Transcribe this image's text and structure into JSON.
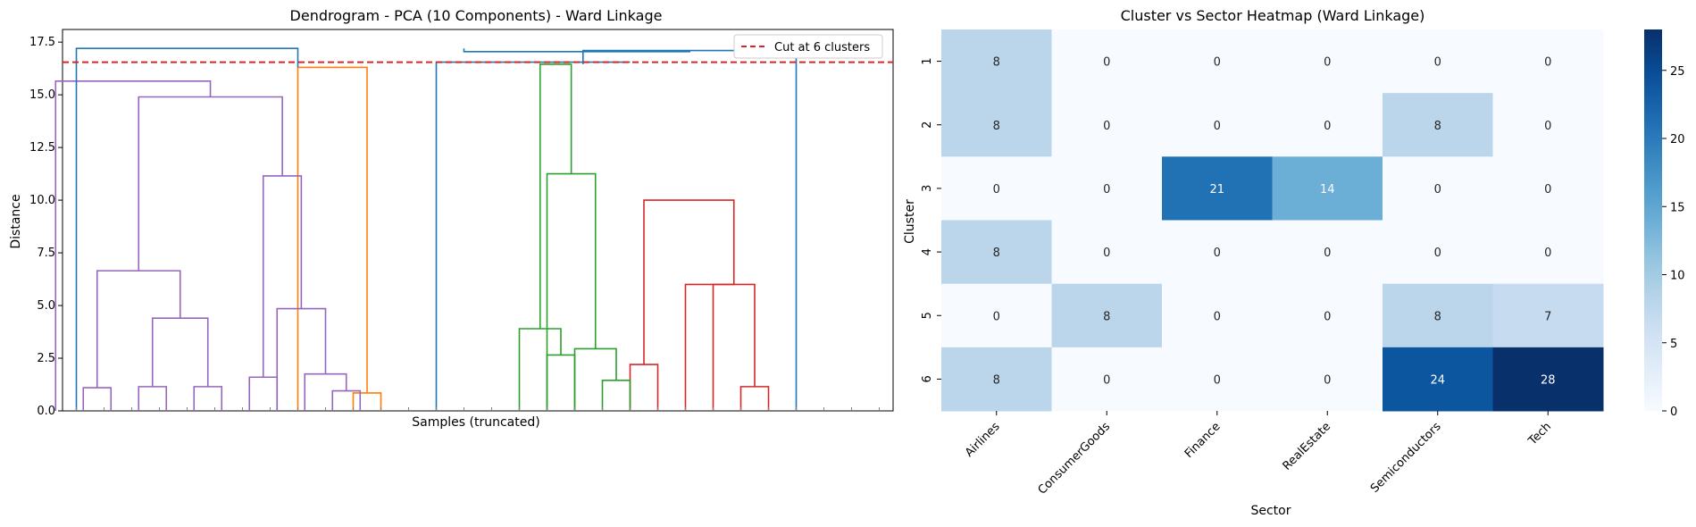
{
  "chart_data": [
    {
      "type": "dendrogram",
      "title": "Dendrogram - PCA (10 Components) - Ward Linkage",
      "xlabel": "Samples (truncated)",
      "ylabel": "Distance",
      "ylim": [
        0,
        18.1
      ],
      "yticks": [
        "0.0",
        "2.5",
        "5.0",
        "7.5",
        "10.0",
        "12.5",
        "15.0",
        "17.5"
      ],
      "cut_line": {
        "value": 16.55,
        "label": "Cut at 6 clusters",
        "color": "#d62728"
      },
      "legend_position": "top-right",
      "leaf_count": 30,
      "xlim": [
        0,
        300
      ],
      "colors": {
        "C1": "#ff7f0e",
        "C2": "#2ca02c",
        "C3": "#d62728",
        "C4": "#9467bd",
        "above": "#1f77b4"
      },
      "merges": [
        {
          "x1": 105,
          "x2": 115,
          "y1": 0,
          "y2": 0,
          "h": 0.85,
          "c": "C1"
        },
        {
          "x1": 85,
          "x2": 110,
          "y1": 0,
          "y2": 0.85,
          "h": 16.3,
          "c": "C1"
        },
        {
          "x1": 205,
          "x2": 215,
          "y1": 0,
          "y2": 0,
          "h": 2.2,
          "c": "C3"
        },
        {
          "x1": 245,
          "x2": 255,
          "y1": 0,
          "y2": 0,
          "h": 1.15,
          "c": "C3"
        },
        {
          "x1": 235,
          "x2": 250,
          "y1": 0,
          "y2": 1.15,
          "h": 6.0,
          "c": "C3"
        },
        {
          "x1": 225,
          "x2": 242.5,
          "y1": 0,
          "y2": 6.0,
          "h": 6.0,
          "c": "C3"
        },
        {
          "x1": 210,
          "x2": 242.5,
          "y1": 2.2,
          "y2": 6.0,
          "h": 10.0,
          "c": "C3"
        },
        {
          "x1": 175,
          "x2": 185,
          "y1": 0,
          "y2": 0,
          "h": 2.65,
          "c": "C2"
        },
        {
          "x1": 165,
          "x2": 180,
          "y1": 0,
          "y2": 2.65,
          "h": 3.9,
          "c": "C2"
        },
        {
          "x1": 195,
          "x2": 205,
          "y1": 0,
          "y2": 0,
          "h": 1.45,
          "c": "C2"
        },
        {
          "x1": 185,
          "x2": 200,
          "y1": 0,
          "y2": 1.45,
          "h": 2.95,
          "c": "C2"
        },
        {
          "x1": 175,
          "x2": 192.5,
          "y1": 0,
          "y2": 2.95,
          "h": 11.25,
          "c": "C2"
        },
        {
          "x1": 172.5,
          "x2": 183.75,
          "y1": 3.9,
          "y2": 11.25,
          "h": 16.45,
          "c": "C2"
        },
        {
          "x1": 7.5,
          "x2": 17.5,
          "y1": 0,
          "y2": 0,
          "h": 1.1,
          "c": "C4"
        },
        {
          "x1": 27.5,
          "x2": 37.5,
          "y1": 0,
          "y2": 0,
          "h": 1.15,
          "c": "C4"
        },
        {
          "x1": 47.5,
          "x2": 57.5,
          "y1": 0,
          "y2": 0,
          "h": 1.15,
          "c": "C4"
        },
        {
          "x1": 32.5,
          "x2": 52.5,
          "y1": 1.15,
          "y2": 1.15,
          "h": 4.4,
          "c": "C4"
        },
        {
          "x1": 12.5,
          "x2": 42.5,
          "y1": 1.1,
          "y2": 4.4,
          "h": 6.65,
          "c": "C4"
        },
        {
          "x1": 67.5,
          "x2": 77.5,
          "y1": 0,
          "y2": 0,
          "h": 1.6,
          "c": "C4"
        },
        {
          "x1": 97.5,
          "x2": 107.5,
          "y1": 0,
          "y2": 0,
          "h": 0.95,
          "c": "C4"
        },
        {
          "x1": 87.5,
          "x2": 102.5,
          "y1": 0,
          "y2": 0.95,
          "h": 1.75,
          "c": "C4"
        },
        {
          "x1": 77.5,
          "x2": 95,
          "y1": 0,
          "y2": 1.75,
          "h": 4.85,
          "c": "C4"
        },
        {
          "x1": 72.5,
          "x2": 86.25,
          "y1": 1.6,
          "y2": 4.85,
          "h": 11.15,
          "c": "C4"
        },
        {
          "x1": 27.5,
          "x2": 79.4,
          "y1": 6.65,
          "y2": 11.15,
          "h": 14.9,
          "c": "C4"
        },
        {
          "x1": -2.5,
          "x2": 53.4,
          "y1": 0,
          "y2": 14.9,
          "h": 15.65,
          "c": "C4"
        }
      ],
      "upper_links": [
        {
          "x1": 5,
          "x2": 85,
          "y1": 0,
          "y2": 16.3,
          "h": 17.2
        },
        {
          "x1": 188,
          "x2": 265,
          "y1": 16.45,
          "y2": 0,
          "h": 17.1
        },
        {
          "x1": 145,
          "x2": 226.5,
          "y1": 17.2,
          "y2": 17.1,
          "h": 17.05
        },
        {
          "x1": 135,
          "x2": 205,
          "y1": 0,
          "y2": 16.55,
          "h": 16.55
        }
      ]
    },
    {
      "type": "heatmap",
      "title": "Cluster vs Sector Heatmap (Ward Linkage)",
      "xlabel": "Sector",
      "ylabel": "Cluster",
      "x_categories": [
        "Airlines",
        "ConsumerGoods",
        "Finance",
        "RealEstate",
        "Semiconductors",
        "Tech"
      ],
      "y_categories": [
        "1",
        "2",
        "3",
        "4",
        "5",
        "6"
      ],
      "values": [
        [
          8,
          0,
          0,
          0,
          0,
          0
        ],
        [
          8,
          0,
          0,
          0,
          8,
          0
        ],
        [
          0,
          0,
          21,
          14,
          0,
          0
        ],
        [
          8,
          0,
          0,
          0,
          0,
          0
        ],
        [
          0,
          8,
          0,
          0,
          8,
          7
        ],
        [
          8,
          0,
          0,
          0,
          24,
          28
        ]
      ],
      "colormap": "Blues",
      "colorbar_range": [
        0,
        28
      ],
      "colorbar_ticks": [
        "0",
        "5",
        "10",
        "15",
        "20",
        "25"
      ]
    }
  ]
}
